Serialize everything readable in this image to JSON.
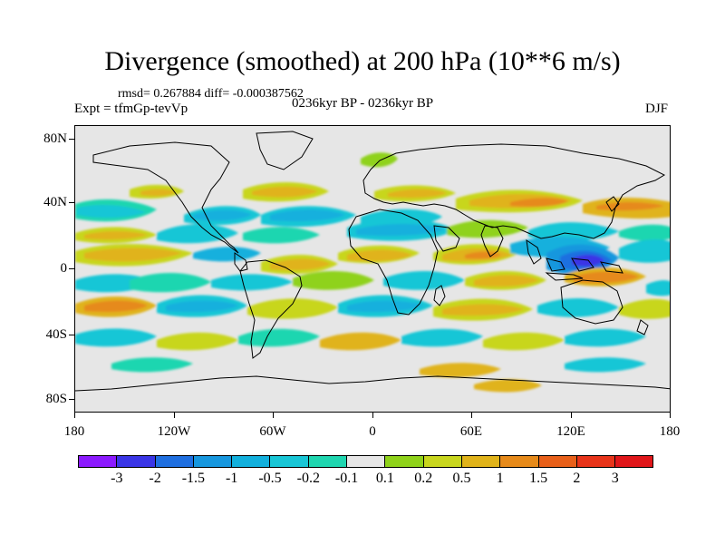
{
  "title": "Divergence (smoothed) at 200 hPa (10**6 m/s)",
  "stats_line": "rmsd= 0.267884  diff= -0.000387562",
  "experiment": "Expt = tfmGp-tevVp",
  "period": "0236kyr BP - 0236kyr BP",
  "season": "DJF",
  "y_axis_labels": [
    "80N",
    "40N",
    "0",
    "40S",
    "80S"
  ],
  "x_axis_labels": [
    "180",
    "120W",
    "60W",
    "0",
    "60E",
    "120E",
    "180"
  ],
  "colorbar": {
    "labels": [
      "-3",
      "-2",
      "-1.5",
      "-1",
      "-0.5",
      "-0.2",
      "-0.1",
      "0.1",
      "0.2",
      "0.5",
      "1",
      "1.5",
      "2",
      "3"
    ],
    "colors": [
      "#8c1aff",
      "#3a35e6",
      "#1f6fe0",
      "#1797de",
      "#12b0dd",
      "#18c6d6",
      "#1fd6b0",
      "#e6e6e6",
      "#8fd21a",
      "#c8d61e",
      "#e0b31a",
      "#e68a1a",
      "#e8601a",
      "#e8341a",
      "#e0161a"
    ]
  },
  "colors": {
    "neutral": "#e6e6e6",
    "land_outline": "#000000"
  }
}
